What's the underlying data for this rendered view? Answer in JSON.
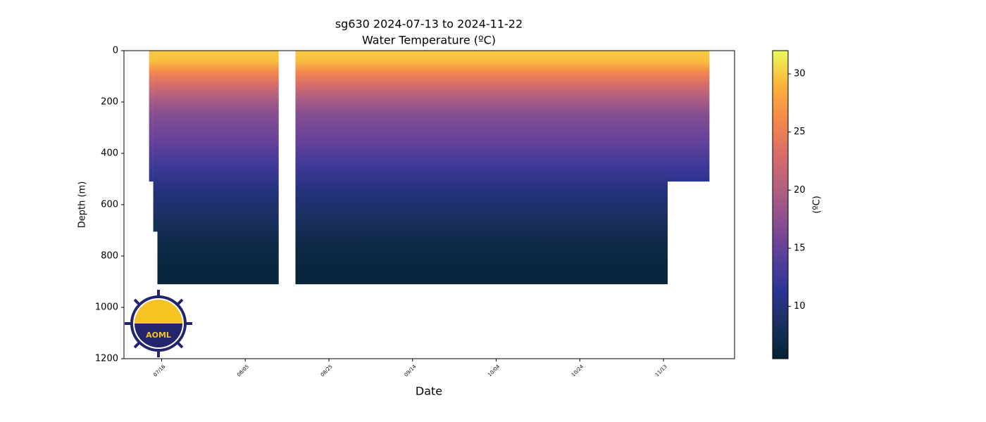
{
  "chart_data": {
    "type": "section",
    "title": "sg630 2024-07-13 to 2024-11-22",
    "subtitle": "Water Temperature (ºC)",
    "x_label": "Date",
    "y_label": "Depth (m)",
    "colorbar_label": "(ºC)",
    "logo_text": "AOML",
    "xlim": [
      "07/07",
      "11/30"
    ],
    "xticks": [
      "07/16",
      "08/05",
      "08/25",
      "09/14",
      "10/04",
      "10/24",
      "11/13"
    ],
    "ylim": [
      1200,
      0
    ],
    "yticks": [
      0,
      200,
      400,
      600,
      800,
      1000,
      1200
    ],
    "clim": [
      5.5,
      32
    ],
    "cticks": [
      10,
      15,
      20,
      25,
      30
    ],
    "colormap": [
      "#042333",
      "#1a2f5e",
      "#2c3595",
      "#5a3f9c",
      "#8a4e8f",
      "#b3607f",
      "#da6e68",
      "#f48a4a",
      "#fcb33a",
      "#e8fa5b"
    ],
    "depths": [
      0,
      40,
      80,
      130,
      180,
      250,
      350,
      450,
      550,
      650,
      750,
      850,
      910
    ],
    "temperatures": [
      30,
      29.5,
      26,
      23,
      20,
      17,
      15,
      12.5,
      10,
      8.5,
      7,
      6.2,
      6
    ],
    "segments": [
      {
        "start": "07/13",
        "end": "07/14",
        "max_depth": 510
      },
      {
        "start": "07/14",
        "end": "07/15",
        "max_depth": 705
      },
      {
        "start": "07/15",
        "end": "08/13",
        "max_depth": 910
      },
      {
        "start": "08/17",
        "end": "11/14",
        "max_depth": 910
      },
      {
        "start": "11/14",
        "end": "11/24",
        "max_depth": 510
      }
    ]
  }
}
